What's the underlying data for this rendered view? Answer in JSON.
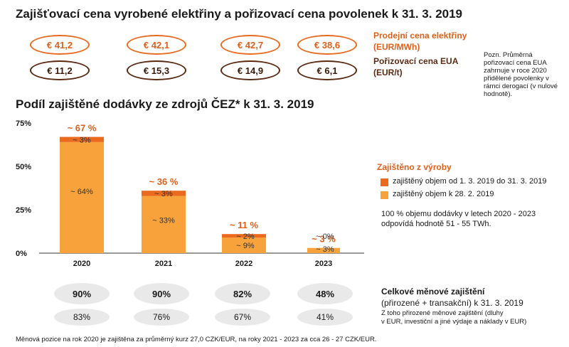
{
  "title_prices": "Zajišťovací cena vyrobené elektřiny a pořizovací cena povolenek k 31. 3. 2019",
  "title_hedge": "Podíl zajištěné dodávky ze zdrojů ČEZ* k 31. 3. 2019",
  "price_rows": {
    "electricity": [
      "€ 41,2",
      "€ 42,1",
      "€ 42,7",
      "€ 38,6"
    ],
    "eua": [
      "€ 11,2",
      "€ 15,3",
      "€ 14,9",
      "€ 6,1"
    ]
  },
  "legend_prices": {
    "electricity": "Prodejní cena elektřiny (EUR/MWh)",
    "eua": "Pořizovací cena EUA (EUR/t)",
    "note": "Pozn. Průměrná pořizovací cena EUA zahrnuje v roce 2020 přidělené povolenky v rámci derogací (v nulové hodnotě)."
  },
  "chart_data": {
    "type": "bar",
    "stacked": true,
    "title": "Podíl zajištěné dodávky ze zdrojů ČEZ* k 31. 3. 2019",
    "categories": [
      "2020",
      "2021",
      "2022",
      "2023"
    ],
    "series": [
      {
        "name": "zajištěný objem k 28. 2. 2019",
        "values": [
          64,
          33,
          9,
          3
        ],
        "labels": [
          "~ 64%",
          "~ 33%",
          "~ 9%",
          "~ 3%"
        ],
        "color": "#f7a23b"
      },
      {
        "name": "zajištěný objem od 1. 3. 2019 do 31. 3. 2019",
        "values": [
          3,
          3,
          2,
          0
        ],
        "labels": [
          "~ 3%",
          "~ 3%",
          "~ 2%",
          "~ 0%"
        ],
        "color": "#ea6a20"
      }
    ],
    "totals": [
      "~ 67 %",
      "~ 36 %",
      "~ 11 %",
      "~ 3 %"
    ],
    "ylim": [
      0,
      75
    ],
    "yticks": [
      "0%",
      "25%",
      "50%",
      "75%"
    ],
    "xlabel": "",
    "ylabel": ""
  },
  "hedge_legend": {
    "title": "Zajištěno z výroby",
    "item_new": "zajištěný objem od 1. 3. 2019 do 31. 3. 2019",
    "item_old": "zajištěný objem k 28. 2. 2019",
    "note_line1": "100 % objemu dodávky v letech 2020 - 2023",
    "note_line2": "odpovídá hodnotě 51 - 55 TWh."
  },
  "currency": {
    "total": [
      "90%",
      "90%",
      "82%",
      "48%"
    ],
    "natural": [
      "83%",
      "76%",
      "67%",
      "41%"
    ],
    "title": "Celkové měnové zajištění",
    "subtitle": "(přirozené + transakční) k 31. 3. 2019",
    "note_line1": "Z toho přirozené měnové zajištění (dluhy",
    "note_line2": "v EUR, investiční a jiné výdaje a náklady v EUR)"
  },
  "footer": "Měnová pozice na rok 2020 je zajištěna za průměrný kurz 27,0 CZK/EUR, na roky 2021 - 2023 za cca 26 - 27 CZK/EUR.",
  "colors": {
    "accent": "#ea6a20",
    "bar_light": "#f7a23b",
    "brown": "#5a2a12"
  }
}
